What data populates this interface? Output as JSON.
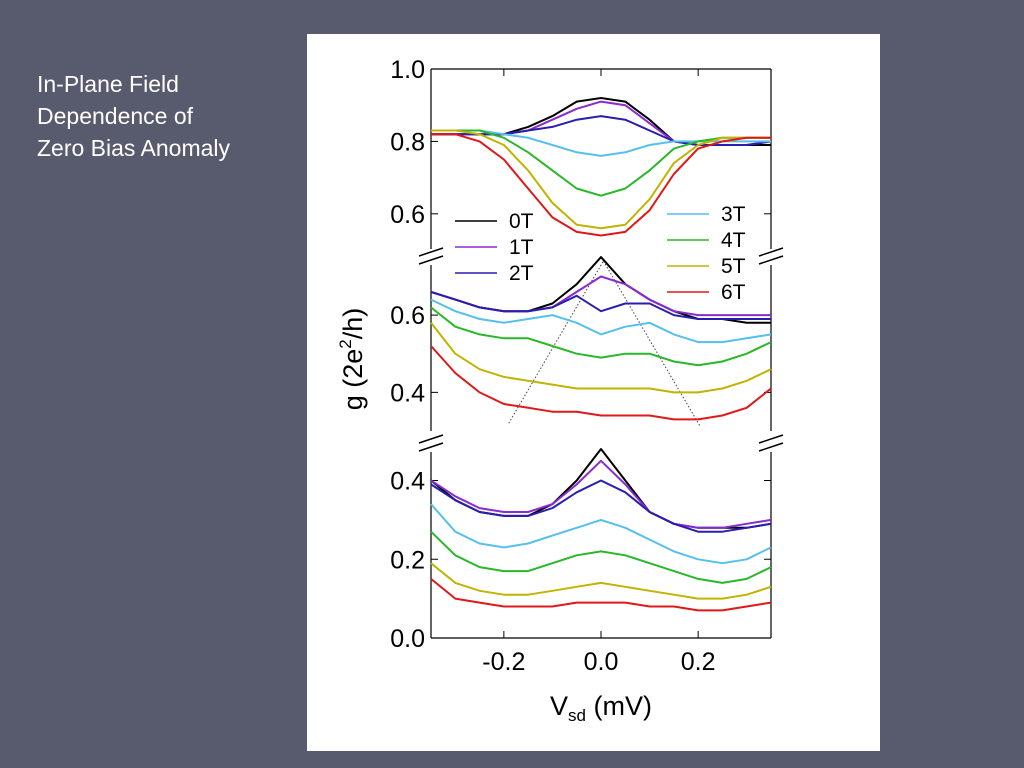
{
  "slide": {
    "title_lines": [
      "In-Plane Field",
      "Dependence of",
      "Zero Bias Anomaly"
    ]
  },
  "colors": {
    "background": "#585a6e",
    "panel": "#ffffff",
    "title_text": "#ffffff"
  },
  "chart_data": {
    "type": "line",
    "xlabel_main": "V",
    "xlabel_sub": "sd",
    "xlabel_unit": " (mV)",
    "ylabel_pre": "g (2e",
    "ylabel_sup": "2",
    "ylabel_post": "/h)",
    "xlim": [
      -0.35,
      0.35
    ],
    "x_ticks": [
      -0.2,
      0.0,
      0.2
    ],
    "x_tick_labels": [
      "-0.2",
      "0.0",
      "0.2"
    ],
    "x": [
      -0.35,
      -0.3,
      -0.25,
      -0.2,
      -0.15,
      -0.1,
      -0.05,
      0.0,
      0.05,
      0.1,
      0.15,
      0.2,
      0.25,
      0.3,
      0.35
    ],
    "legend": [
      {
        "label": "0T",
        "color": "#000000"
      },
      {
        "label": "1T",
        "color": "#8a2bd2"
      },
      {
        "label": "2T",
        "color": "#2a1eb0"
      },
      {
        "label": "3T",
        "color": "#55bfee"
      },
      {
        "label": "4T",
        "color": "#28b828"
      },
      {
        "label": "5T",
        "color": "#c0b400"
      },
      {
        "label": "6T",
        "color": "#e01818"
      }
    ],
    "panels": [
      {
        "ylim": [
          0.5,
          1.0
        ],
        "y_ticks": [
          0.6,
          0.8,
          1.0
        ],
        "y_tick_labels": [
          "0.6",
          "0.8",
          "1.0"
        ],
        "series": [
          {
            "name": "0T",
            "values": [
              0.82,
              0.82,
              0.82,
              0.82,
              0.84,
              0.87,
              0.91,
              0.92,
              0.91,
              0.86,
              0.8,
              0.79,
              0.79,
              0.79,
              0.79
            ]
          },
          {
            "name": "1T",
            "values": [
              0.82,
              0.82,
              0.82,
              0.82,
              0.83,
              0.86,
              0.89,
              0.91,
              0.9,
              0.85,
              0.8,
              0.79,
              0.79,
              0.79,
              0.8
            ]
          },
          {
            "name": "2T",
            "values": [
              0.82,
              0.82,
              0.82,
              0.82,
              0.83,
              0.84,
              0.86,
              0.87,
              0.86,
              0.83,
              0.8,
              0.79,
              0.79,
              0.79,
              0.8
            ]
          },
          {
            "name": "3T",
            "values": [
              0.83,
              0.83,
              0.83,
              0.82,
              0.81,
              0.79,
              0.77,
              0.76,
              0.77,
              0.79,
              0.8,
              0.8,
              0.8,
              0.8,
              0.8
            ]
          },
          {
            "name": "4T",
            "values": [
              0.83,
              0.83,
              0.83,
              0.81,
              0.77,
              0.72,
              0.67,
              0.65,
              0.67,
              0.72,
              0.78,
              0.8,
              0.81,
              0.81,
              0.81
            ]
          },
          {
            "name": "5T",
            "values": [
              0.83,
              0.83,
              0.82,
              0.79,
              0.72,
              0.63,
              0.57,
              0.56,
              0.57,
              0.64,
              0.74,
              0.79,
              0.81,
              0.81,
              0.81
            ]
          },
          {
            "name": "6T",
            "values": [
              0.82,
              0.82,
              0.8,
              0.75,
              0.67,
              0.59,
              0.55,
              0.54,
              0.55,
              0.61,
              0.71,
              0.78,
              0.8,
              0.81,
              0.81
            ]
          }
        ]
      },
      {
        "ylim": [
          0.3,
          0.74
        ],
        "y_ticks": [
          0.4,
          0.6
        ],
        "y_tick_labels": [
          "0.4",
          "0.6"
        ],
        "series": [
          {
            "name": "0T",
            "values": [
              0.66,
              0.64,
              0.62,
              0.61,
              0.61,
              0.63,
              0.68,
              0.75,
              0.68,
              0.64,
              0.61,
              0.59,
              0.59,
              0.58,
              0.58
            ]
          },
          {
            "name": "1T",
            "values": [
              0.66,
              0.64,
              0.62,
              0.61,
              0.61,
              0.62,
              0.66,
              0.7,
              0.68,
              0.64,
              0.61,
              0.6,
              0.6,
              0.6,
              0.6
            ]
          },
          {
            "name": "2T",
            "values": [
              0.66,
              0.64,
              0.62,
              0.61,
              0.61,
              0.62,
              0.65,
              0.61,
              0.63,
              0.63,
              0.6,
              0.59,
              0.59,
              0.59,
              0.59
            ]
          },
          {
            "name": "3T",
            "values": [
              0.64,
              0.61,
              0.59,
              0.58,
              0.59,
              0.6,
              0.58,
              0.55,
              0.57,
              0.58,
              0.55,
              0.53,
              0.53,
              0.54,
              0.55
            ]
          },
          {
            "name": "4T",
            "values": [
              0.62,
              0.57,
              0.55,
              0.54,
              0.54,
              0.52,
              0.5,
              0.49,
              0.5,
              0.5,
              0.48,
              0.47,
              0.48,
              0.5,
              0.53
            ]
          },
          {
            "name": "5T",
            "values": [
              0.58,
              0.5,
              0.46,
              0.44,
              0.43,
              0.42,
              0.41,
              0.41,
              0.41,
              0.41,
              0.4,
              0.4,
              0.41,
              0.43,
              0.46
            ]
          },
          {
            "name": "6T",
            "values": [
              0.52,
              0.45,
              0.4,
              0.37,
              0.36,
              0.35,
              0.35,
              0.34,
              0.34,
              0.34,
              0.33,
              0.33,
              0.34,
              0.36,
              0.41
            ]
          }
        ],
        "guide_lines": [
          {
            "points": [
              [
                -0.19,
                0.32
              ],
              [
                0.005,
                0.74
              ]
            ]
          },
          {
            "points": [
              [
                0.005,
                0.74
              ],
              [
                0.205,
                0.31
              ]
            ]
          }
        ]
      },
      {
        "ylim": [
          0.0,
          0.48
        ],
        "y_ticks": [
          0.0,
          0.2,
          0.4
        ],
        "y_tick_labels": [
          "0.0",
          "0.2",
          "0.4"
        ],
        "series": [
          {
            "name": "0T",
            "values": [
              0.4,
              0.35,
              0.32,
              0.31,
              0.31,
              0.34,
              0.4,
              0.48,
              0.4,
              0.32,
              0.29,
              0.28,
              0.28,
              0.28,
              0.29
            ]
          },
          {
            "name": "1T",
            "values": [
              0.4,
              0.36,
              0.33,
              0.32,
              0.32,
              0.34,
              0.39,
              0.45,
              0.39,
              0.32,
              0.29,
              0.28,
              0.28,
              0.29,
              0.3
            ]
          },
          {
            "name": "2T",
            "values": [
              0.39,
              0.35,
              0.32,
              0.31,
              0.31,
              0.33,
              0.37,
              0.4,
              0.37,
              0.32,
              0.29,
              0.27,
              0.27,
              0.28,
              0.29
            ]
          },
          {
            "name": "3T",
            "values": [
              0.34,
              0.27,
              0.24,
              0.23,
              0.24,
              0.26,
              0.28,
              0.3,
              0.28,
              0.25,
              0.22,
              0.2,
              0.19,
              0.2,
              0.23
            ]
          },
          {
            "name": "4T",
            "values": [
              0.27,
              0.21,
              0.18,
              0.17,
              0.17,
              0.19,
              0.21,
              0.22,
              0.21,
              0.19,
              0.17,
              0.15,
              0.14,
              0.15,
              0.18
            ]
          },
          {
            "name": "5T",
            "values": [
              0.19,
              0.14,
              0.12,
              0.11,
              0.11,
              0.12,
              0.13,
              0.14,
              0.13,
              0.12,
              0.11,
              0.1,
              0.1,
              0.11,
              0.13
            ]
          },
          {
            "name": "6T",
            "values": [
              0.15,
              0.1,
              0.09,
              0.08,
              0.08,
              0.08,
              0.09,
              0.09,
              0.09,
              0.08,
              0.08,
              0.07,
              0.07,
              0.08,
              0.09
            ]
          }
        ]
      }
    ]
  }
}
